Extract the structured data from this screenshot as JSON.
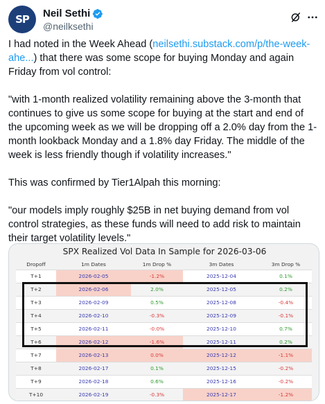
{
  "author": {
    "name": "Neil Sethi",
    "handle": "@neilksethi",
    "avatar_text": "SP"
  },
  "icons": [
    "verified-badge-icon",
    "grok-icon",
    "more-icon"
  ],
  "post": {
    "p1_a": "I had noted in the Week Ahead (",
    "p1_link": "neilsethi.substack.com/p/the-week-ahe...",
    "p1_b": ") that there was some scope for buying Monday and again Friday from vol control:",
    "p2": "\"with 1-month realized volatility remaining above the 3-month that continues to give us some scope for buying at the start and end of the upcoming week as we will be dropping off a 2.0% day from the 1-month lookback Monday and a 1.8% day Friday.  The middle of the week is less friendly though if volatility increases.\"",
    "p3": "This was confirmed by Tier1Alpah this morning:",
    "p4": "\"our models imply roughly $25B in net buying demand from vol control strategies, as these funds will need to add risk to maintain their target volatility levels.\""
  },
  "table": {
    "title": "SPX Realized Vol Data In Sample for 2026-03-06",
    "headers": [
      "Dropoff",
      "1m Dates",
      "1m Drop %",
      "3m Dates",
      "3m Drop %"
    ],
    "rows": [
      {
        "dropoff": "T+1",
        "d1": "2026-02-05",
        "p1": "-1.2%",
        "d3": "2025-12-04",
        "p3": "0.1%"
      },
      {
        "dropoff": "T+2",
        "d1": "2026-02-06",
        "p1": "2.0%",
        "d3": "2025-12-05",
        "p3": "0.2%"
      },
      {
        "dropoff": "T+3",
        "d1": "2026-02-09",
        "p1": "0.5%",
        "d3": "2025-12-08",
        "p3": "-0.4%"
      },
      {
        "dropoff": "T+4",
        "d1": "2026-02-10",
        "p1": "-0.3%",
        "d3": "2025-12-09",
        "p3": "-0.1%"
      },
      {
        "dropoff": "T+5",
        "d1": "2026-02-11",
        "p1": "-0.0%",
        "d3": "2025-12-10",
        "p3": "0.7%"
      },
      {
        "dropoff": "T+6",
        "d1": "2026-02-12",
        "p1": "-1.6%",
        "d3": "2025-12-11",
        "p3": "0.2%"
      },
      {
        "dropoff": "T+7",
        "d1": "2026-02-13",
        "p1": "0.0%",
        "d3": "2025-12-12",
        "p3": "-1.1%"
      },
      {
        "dropoff": "T+8",
        "d1": "2026-02-17",
        "p1": "0.1%",
        "d3": "2025-12-15",
        "p3": "-0.2%"
      },
      {
        "dropoff": "T+9",
        "d1": "2026-02-18",
        "p1": "0.6%",
        "d3": "2025-12-16",
        "p3": "-0.2%"
      },
      {
        "dropoff": "T+10",
        "d1": "2026-02-19",
        "p1": "-0.3%",
        "d3": "2025-12-17",
        "p3": "-1.2%"
      }
    ]
  }
}
